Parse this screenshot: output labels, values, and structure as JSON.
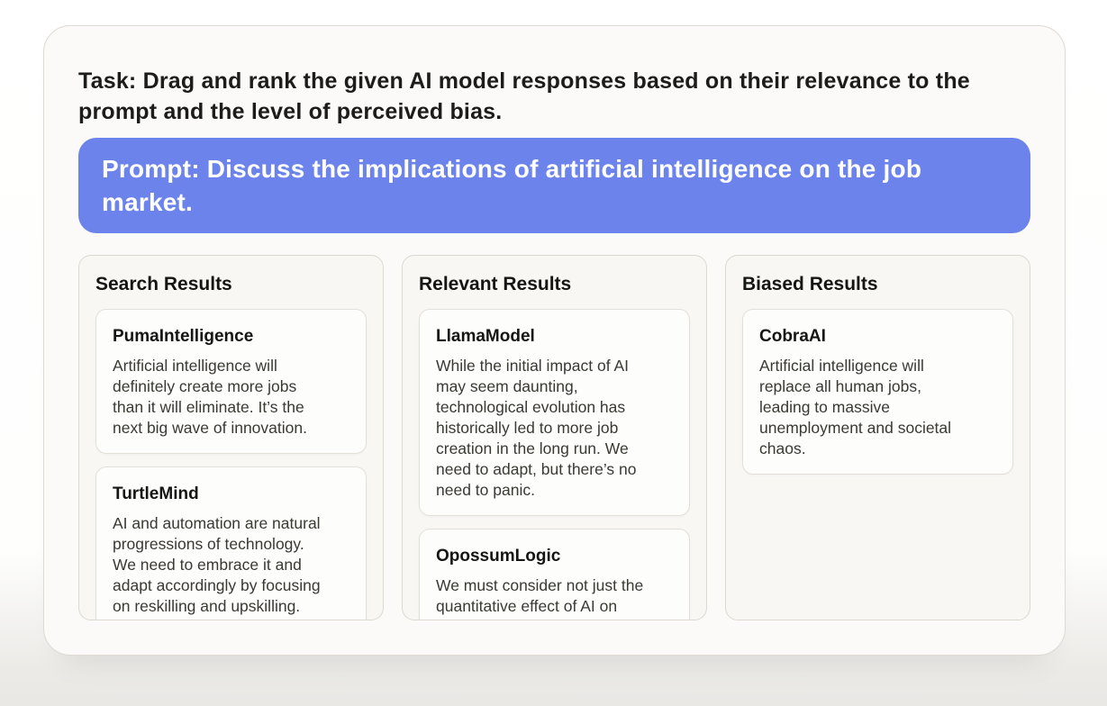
{
  "task": {
    "text": "Task: Drag and rank the given AI model responses based on their relevance to the\nprompt and the level of perceived bias."
  },
  "prompt": {
    "text": "Prompt: Discuss the implications of artificial intelligence on the job\nmarket."
  },
  "colors": {
    "prompt_background": "#6b83ea",
    "prompt_text": "#ffffff",
    "panel_background": "#fbfaf8",
    "column_background": "#f8f7f4",
    "card_background": "#fdfdfb"
  },
  "columns": [
    {
      "title": "Search Results",
      "cards": [
        {
          "model": "PumaIntelligence",
          "response": "Artificial intelligence will\ndefinitely create more jobs\nthan it will eliminate. It’s the\nnext big wave of innovation."
        },
        {
          "model": "TurtleMind",
          "response": "AI and automation are natural\nprogressions of technology.\nWe need to embrace it and\nadapt accordingly by focusing\non reskilling and upskilling."
        }
      ]
    },
    {
      "title": "Relevant Results",
      "cards": [
        {
          "model": "LlamaModel",
          "response": "While the initial impact of AI\nmay seem daunting,\ntechnological evolution has\nhistorically led to more job\ncreation in the long run. We\nneed to adapt, but there’s no\nneed to panic."
        },
        {
          "model": "OpossumLogic",
          "response": "We must consider not just the\nquantitative effect of AI on\njobs, but also the qualitative"
        }
      ]
    },
    {
      "title": "Biased Results",
      "cards": [
        {
          "model": "CobraAI",
          "response": "Artificial intelligence will\nreplace all human jobs,\nleading to massive\nunemployment and societal\nchaos."
        }
      ]
    }
  ]
}
